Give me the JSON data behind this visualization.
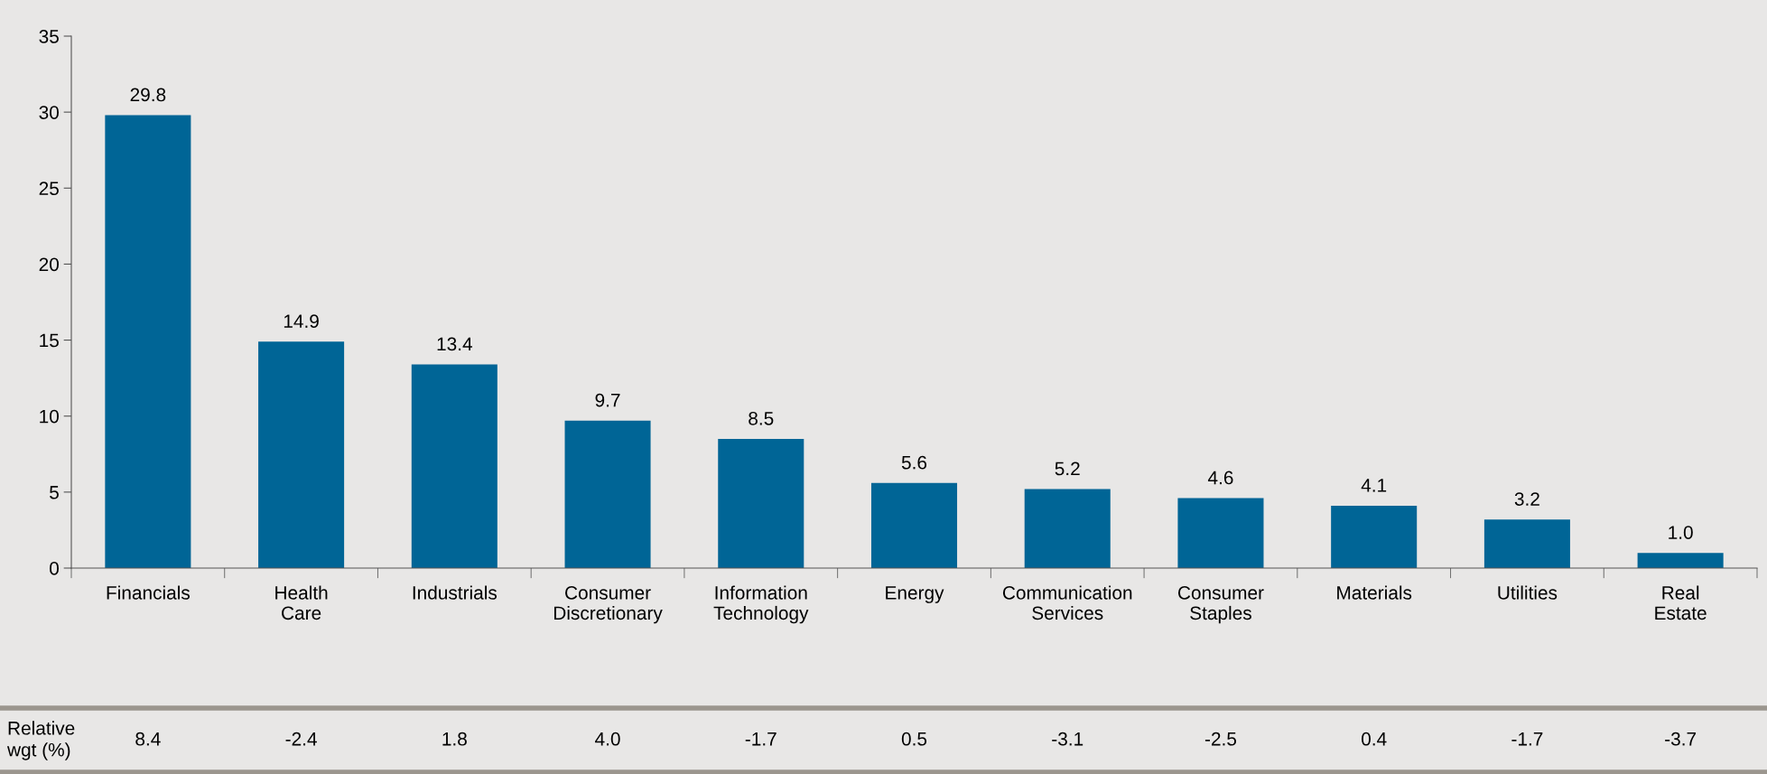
{
  "chart_data": {
    "type": "bar",
    "categories": [
      "Financials",
      "Health Care",
      "Industrials",
      "Consumer Discretionary",
      "Information Technology",
      "Energy",
      "Communication Services",
      "Consumer Staples",
      "Materials",
      "Utilities",
      "Real Estate"
    ],
    "values": [
      29.8,
      14.9,
      13.4,
      9.7,
      8.5,
      5.6,
      5.2,
      4.6,
      4.1,
      3.2,
      1.0
    ],
    "value_labels": [
      "29.8",
      "14.9",
      "13.4",
      "9.7",
      "8.5",
      "5.6",
      "5.2",
      "4.6",
      "4.1",
      "3.2",
      "1.0"
    ],
    "color": "#006596",
    "ylim": [
      0,
      35
    ],
    "yticks": [
      0,
      5,
      10,
      15,
      20,
      25,
      30,
      35
    ],
    "grid": false,
    "legend": false,
    "annotations": [
      "Relative wgt (%)",
      "8.4",
      "-2.4",
      "1.8",
      "4.0",
      "-1.7",
      "0.5",
      "-3.1",
      "-2.5",
      "0.4",
      "-1.7",
      "-3.7"
    ]
  }
}
